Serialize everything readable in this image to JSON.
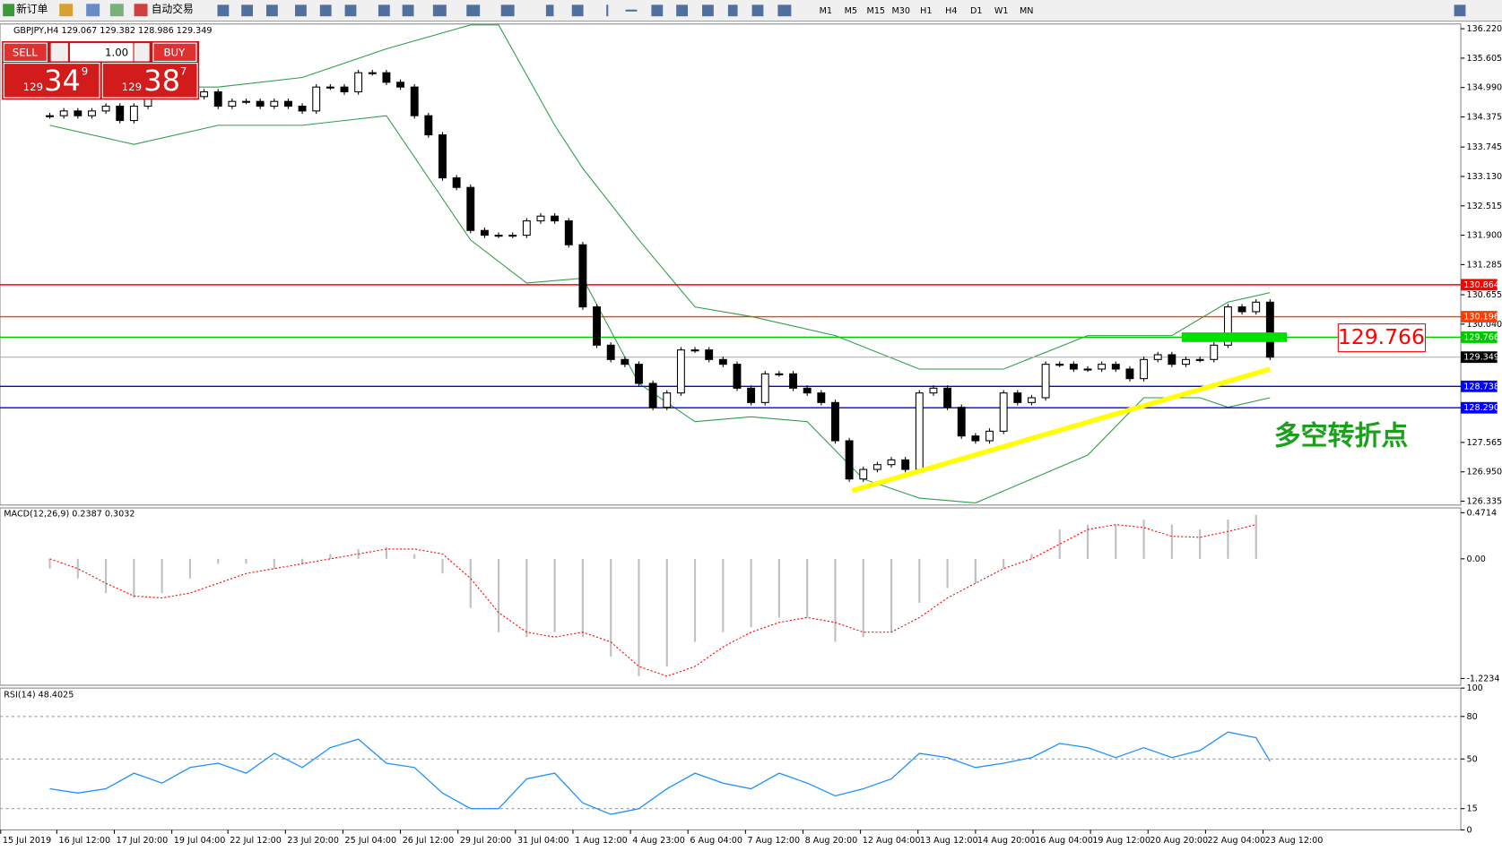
{
  "toolbar": {
    "new_order": "新订单",
    "auto_trading": "自动交易",
    "timeframes": [
      "M1",
      "M5",
      "M15",
      "M30",
      "H1",
      "H4",
      "D1",
      "W1",
      "MN"
    ]
  },
  "trade_panel": {
    "sell": "SELL",
    "lots": "1.00",
    "buy": "BUY",
    "sell_big": "129",
    "sell_pips": "34",
    "sell_frac": "9",
    "buy_big": "129",
    "buy_pips": "38",
    "buy_frac": "7"
  },
  "chart_data": [
    {
      "type": "candlestick",
      "title": "GBPJPY,H4  129.067 129.382 128.986 129.349",
      "xlim": [
        -3.55,
        100.6
      ],
      "ylim": [
        126.255,
        136.32
      ],
      "xticks": [
        {
          "value": -3.5,
          "label": "15 Jul 2019"
        },
        {
          "value": 0.5,
          "label": "16 Jul 12:00"
        },
        {
          "value": 4.6,
          "label": "17 Jul 20:00"
        },
        {
          "value": 8.7,
          "label": "19 Jul 04:00"
        },
        {
          "value": 12.7,
          "label": "22 Jul 12:00"
        },
        {
          "value": 16.8,
          "label": "23 Jul 20:00"
        },
        {
          "value": 20.9,
          "label": "25 Jul 04:00"
        },
        {
          "value": 25,
          "label": "26 Jul 12:00"
        },
        {
          "value": 29.1,
          "label": "29 Jul 20:00"
        },
        {
          "value": 33.2,
          "label": "31 Jul 04:00"
        },
        {
          "value": 37.3,
          "label": "1 Aug 12:00"
        },
        {
          "value": 41.4,
          "label": "4 Aug 23:00"
        },
        {
          "value": 45.5,
          "label": "6 Aug 04:00"
        },
        {
          "value": 49.6,
          "label": "7 Aug 12:00"
        },
        {
          "value": 53.7,
          "label": "8 Aug 20:00"
        },
        {
          "value": 57.8,
          "label": "12 Aug 04:00"
        },
        {
          "value": 61.9,
          "label": "13 Aug 12:00"
        },
        {
          "value": 66,
          "label": "14 Aug 20:00"
        },
        {
          "value": 70.1,
          "label": "16 Aug 04:00"
        },
        {
          "value": 74.2,
          "label": "19 Aug 12:00"
        },
        {
          "value": 78.3,
          "label": "20 Aug 20:00"
        },
        {
          "value": 82.4,
          "label": "22 Aug 04:00"
        },
        {
          "value": 86.5,
          "label": "23 Aug 12:00"
        }
      ],
      "yticks": [
        {
          "value": 136.22,
          "label": "136.220"
        },
        {
          "value": 135.605,
          "label": "135.605"
        },
        {
          "value": 134.99,
          "label": "134.990"
        },
        {
          "value": 134.375,
          "label": "134.375"
        },
        {
          "value": 133.745,
          "label": "133.745"
        },
        {
          "value": 133.13,
          "label": "133.130"
        },
        {
          "value": 132.515,
          "label": "132.515"
        },
        {
          "value": 131.9,
          "label": "131.900"
        },
        {
          "value": 131.285,
          "label": "131.285"
        },
        {
          "value": 130.655,
          "label": "130.655"
        },
        {
          "value": 130.04,
          "label": "130.040"
        },
        {
          "value": 127.565,
          "label": "127.565"
        },
        {
          "value": 126.95,
          "label": "126.950"
        },
        {
          "value": 126.335,
          "label": "126.335"
        }
      ],
      "hlines": [
        {
          "value": 130.864,
          "label": "130.864",
          "color": "#ff0000"
        },
        {
          "value": 130.196,
          "label": "130.196",
          "color": "#ff3c00"
        },
        {
          "value": 129.766,
          "label": "129.766",
          "color": "#00c800"
        },
        {
          "value": 128.738,
          "label": "128.738",
          "color": "#0000ff"
        },
        {
          "value": 128.29,
          "label": "128.290",
          "color": "#0000ff"
        }
      ],
      "last": {
        "value": 129.349,
        "label": "129.349"
      },
      "closes": [
        134.4,
        134.5,
        134.4,
        134.5,
        134.6,
        134.3,
        134.6,
        134.8,
        134.8,
        134.9,
        134.8,
        134.9,
        134.6,
        134.7,
        134.7,
        134.6,
        134.7,
        134.6,
        134.5,
        135.0,
        135.0,
        134.9,
        135.3,
        135.3,
        135.1,
        135.0,
        134.4,
        134.0,
        133.1,
        132.9,
        132.0,
        131.9,
        131.9,
        131.9,
        132.2,
        132.3,
        132.2,
        131.7,
        130.4,
        129.6,
        129.3,
        129.2,
        128.8,
        128.3,
        128.6,
        129.5,
        129.5,
        129.3,
        129.2,
        128.7,
        128.4,
        129.0,
        129.0,
        128.7,
        128.6,
        128.4,
        127.6,
        126.8,
        127.0,
        127.1,
        127.2,
        127.0,
        128.6,
        128.7,
        128.3,
        127.7,
        127.6,
        127.8,
        128.6,
        128.4,
        128.5,
        129.2,
        129.2,
        129.1,
        129.1,
        129.2,
        129.1,
        128.9,
        129.3,
        129.4,
        129.2,
        129.3,
        129.3,
        129.6,
        130.4,
        130.3,
        130.5,
        129.349
      ],
      "bands": [
        {
          "color": "#2e9e4a",
          "x": [
            0,
            6,
            12,
            18,
            24,
            30,
            32,
            36,
            38,
            42,
            46,
            50,
            56,
            62,
            68,
            74,
            80,
            84,
            87
          ],
          "values": [
            135.0,
            135.0,
            135.0,
            135.2,
            135.8,
            136.3,
            136.3,
            134.2,
            133.3,
            131.8,
            130.4,
            130.2,
            129.8,
            129.1,
            129.1,
            129.8,
            129.8,
            130.5,
            130.7
          ]
        },
        {
          "color": "#2e9e4a",
          "x": [
            0,
            6,
            12,
            18,
            24,
            30,
            34,
            38,
            42,
            46,
            50,
            54,
            58,
            62,
            66,
            70,
            74,
            78,
            82,
            84,
            87
          ],
          "values": [
            134.2,
            133.8,
            134.2,
            134.2,
            134.4,
            131.8,
            130.9,
            131.0,
            128.8,
            128.0,
            128.1,
            128.0,
            126.8,
            126.4,
            126.3,
            126.8,
            127.3,
            128.5,
            128.5,
            128.3,
            128.5
          ]
        }
      ],
      "trendline": {
        "x": [
          57.2,
          87
        ],
        "y": [
          126.556,
          129.1
        ],
        "color": "#ffff00"
      },
      "zone": {
        "value": 129.766,
        "x": [
          80.7,
          88.2
        ],
        "color": "#00e000"
      },
      "callout": "129.766",
      "note": "多空转折点"
    },
    {
      "type": "macd",
      "title": "MACD(12,26,9) 0.2387 0.3032",
      "xlim": [
        -3.55,
        100.6
      ],
      "ylim": [
        -1.292,
        0.5204
      ],
      "yticks": [
        0.4714,
        {
          "value": 0,
          "label": "0.00"
        },
        -1.2234
      ],
      "x": [
        0,
        2,
        4,
        6,
        8,
        10,
        12,
        14,
        16,
        18,
        20,
        22,
        24,
        26,
        28,
        30,
        32,
        34,
        36,
        38,
        40,
        42,
        44,
        46,
        48,
        50,
        52,
        54,
        56,
        58,
        60,
        62,
        64,
        66,
        68,
        70,
        72,
        74,
        76,
        78,
        80,
        82,
        84,
        86
      ],
      "histogram": [
        -0.1,
        -0.2,
        -0.35,
        -0.4,
        -0.35,
        -0.2,
        -0.05,
        -0.05,
        -0.1,
        -0.05,
        0.05,
        0.1,
        0.12,
        0.05,
        -0.15,
        -0.5,
        -0.75,
        -0.8,
        -0.75,
        -0.8,
        -1.0,
        -1.2,
        -1.1,
        -0.85,
        -0.75,
        -0.7,
        -0.6,
        -0.6,
        -0.85,
        -0.8,
        -0.75,
        -0.45,
        -0.3,
        -0.25,
        -0.1,
        0.05,
        0.3,
        0.35,
        0.35,
        0.4,
        0.35,
        0.3,
        0.4,
        0.45
      ],
      "signal": [
        0.0,
        -0.1,
        -0.25,
        -0.38,
        -0.4,
        -0.35,
        -0.25,
        -0.15,
        -0.1,
        -0.05,
        0.0,
        0.05,
        0.1,
        0.1,
        0.05,
        -0.2,
        -0.55,
        -0.75,
        -0.8,
        -0.75,
        -0.85,
        -1.1,
        -1.2,
        -1.1,
        -0.9,
        -0.75,
        -0.65,
        -0.6,
        -0.65,
        -0.75,
        -0.75,
        -0.6,
        -0.4,
        -0.25,
        -0.1,
        0.0,
        0.15,
        0.3,
        0.35,
        0.32,
        0.23,
        0.22,
        0.28,
        0.35
      ],
      "hist_color": "#c0c0c0",
      "signal_color": "#ff0000"
    },
    {
      "type": "rsi",
      "title": "RSI(14) 48.4025",
      "xlim": [
        -3.55,
        100.6
      ],
      "ylim": [
        0,
        100
      ],
      "yticks": [
        0,
        15,
        50,
        80,
        100
      ],
      "x": [
        0,
        2,
        4,
        6,
        8,
        10,
        12,
        14,
        16,
        18,
        20,
        22,
        24,
        26,
        28,
        30,
        32,
        34,
        36,
        38,
        40,
        42,
        44,
        46,
        48,
        50,
        52,
        54,
        56,
        58,
        60,
        62,
        64,
        66,
        68,
        70,
        72,
        74,
        76,
        78,
        80,
        82,
        84,
        86,
        87
      ],
      "values": [
        29,
        26,
        29,
        40,
        33,
        44,
        47,
        40,
        54,
        44,
        58,
        64,
        47,
        44,
        26,
        15,
        15,
        36,
        40,
        19,
        11,
        15,
        29,
        40,
        33,
        29,
        40,
        33,
        24,
        29,
        36,
        54,
        51,
        44,
        47,
        51,
        61,
        58,
        51,
        58,
        51,
        56,
        69,
        65,
        48.4025
      ],
      "color": "#1e90ff"
    }
  ]
}
